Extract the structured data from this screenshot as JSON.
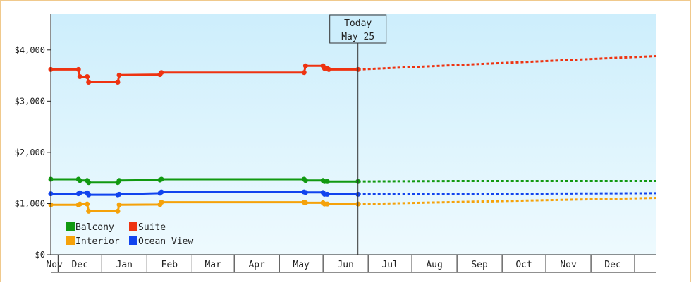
{
  "chart_data": {
    "type": "line",
    "title": "",
    "xlabel": "",
    "ylabel": "",
    "ylim": [
      0,
      4700
    ],
    "y_ticks": [
      "$0",
      "$1,000",
      "$2,000",
      "$3,000",
      "$4,000"
    ],
    "y_tick_values": [
      0,
      1000,
      2000,
      3000,
      4000
    ],
    "months": [
      "Nov",
      "Dec",
      "Jan",
      "Feb",
      "Mar",
      "Apr",
      "May",
      "Jun",
      "Jul",
      "Aug",
      "Sep",
      "Oct",
      "Nov",
      "Dec"
    ],
    "x_range": [
      "2023-10-27",
      "2024-12-16"
    ],
    "today": {
      "line1": "Today",
      "line2": "May 25",
      "date": "2024-05-25"
    },
    "legend": {
      "placement": "bottom-left"
    },
    "grid": false,
    "colors": {
      "plot_bg_top": "#cdeefc",
      "plot_bg_bottom": "#eefafe",
      "frame": "#f0c98c"
    },
    "series": [
      {
        "name": "Balcony",
        "color": "#119911",
        "points": [
          [
            "2023-10-27",
            1475
          ],
          [
            "2023-11-15",
            1475
          ],
          [
            "2023-11-16",
            1450
          ],
          [
            "2023-11-21",
            1450
          ],
          [
            "2023-11-22",
            1410
          ],
          [
            "2023-12-12",
            1410
          ],
          [
            "2023-12-13",
            1450
          ],
          [
            "2024-01-10",
            1460
          ],
          [
            "2024-01-11",
            1475
          ],
          [
            "2024-04-18",
            1475
          ],
          [
            "2024-04-19",
            1450
          ],
          [
            "2024-05-01",
            1450
          ],
          [
            "2024-05-02",
            1430
          ],
          [
            "2024-05-04",
            1430
          ],
          [
            "2024-05-25",
            1430
          ]
        ],
        "forecast": [
          [
            "2024-05-25",
            1430
          ],
          [
            "2024-08-01",
            1440
          ],
          [
            "2024-12-16",
            1440
          ]
        ]
      },
      {
        "name": "Suite",
        "color": "#ee3311",
        "points": [
          [
            "2023-10-27",
            3620
          ],
          [
            "2023-11-15",
            3620
          ],
          [
            "2023-11-16",
            3480
          ],
          [
            "2023-11-21",
            3480
          ],
          [
            "2023-11-22",
            3370
          ],
          [
            "2023-12-12",
            3370
          ],
          [
            "2023-12-13",
            3510
          ],
          [
            "2024-01-10",
            3520
          ],
          [
            "2024-01-11",
            3560
          ],
          [
            "2024-04-18",
            3560
          ],
          [
            "2024-04-19",
            3690
          ],
          [
            "2024-05-01",
            3690
          ],
          [
            "2024-05-02",
            3640
          ],
          [
            "2024-05-04",
            3640
          ],
          [
            "2024-05-05",
            3620
          ],
          [
            "2024-05-25",
            3620
          ]
        ],
        "forecast": [
          [
            "2024-05-25",
            3620
          ],
          [
            "2024-12-16",
            3880
          ]
        ]
      },
      {
        "name": "Interior",
        "color": "#f5a20a",
        "points": [
          [
            "2023-10-27",
            975
          ],
          [
            "2023-11-15",
            975
          ],
          [
            "2023-11-16",
            990
          ],
          [
            "2023-11-21",
            990
          ],
          [
            "2023-11-22",
            850
          ],
          [
            "2023-12-12",
            850
          ],
          [
            "2023-12-13",
            975
          ],
          [
            "2024-01-10",
            980
          ],
          [
            "2024-01-11",
            1025
          ],
          [
            "2024-04-18",
            1025
          ],
          [
            "2024-04-19",
            1015
          ],
          [
            "2024-05-01",
            1015
          ],
          [
            "2024-05-02",
            990
          ],
          [
            "2024-05-04",
            990
          ],
          [
            "2024-05-25",
            990
          ]
        ],
        "forecast": [
          [
            "2024-05-25",
            990
          ],
          [
            "2024-12-16",
            1110
          ]
        ]
      },
      {
        "name": "Ocean View",
        "color": "#1144ee",
        "points": [
          [
            "2023-10-27",
            1190
          ],
          [
            "2023-11-15",
            1190
          ],
          [
            "2023-11-16",
            1210
          ],
          [
            "2023-11-21",
            1210
          ],
          [
            "2023-11-22",
            1170
          ],
          [
            "2023-12-12",
            1170
          ],
          [
            "2023-12-13",
            1180
          ],
          [
            "2024-01-10",
            1200
          ],
          [
            "2024-01-11",
            1225
          ],
          [
            "2024-04-18",
            1225
          ],
          [
            "2024-04-19",
            1215
          ],
          [
            "2024-05-01",
            1215
          ],
          [
            "2024-05-02",
            1180
          ],
          [
            "2024-05-04",
            1180
          ],
          [
            "2024-05-25",
            1180
          ]
        ],
        "forecast": [
          [
            "2024-05-25",
            1180
          ],
          [
            "2024-12-16",
            1200
          ]
        ]
      }
    ]
  }
}
